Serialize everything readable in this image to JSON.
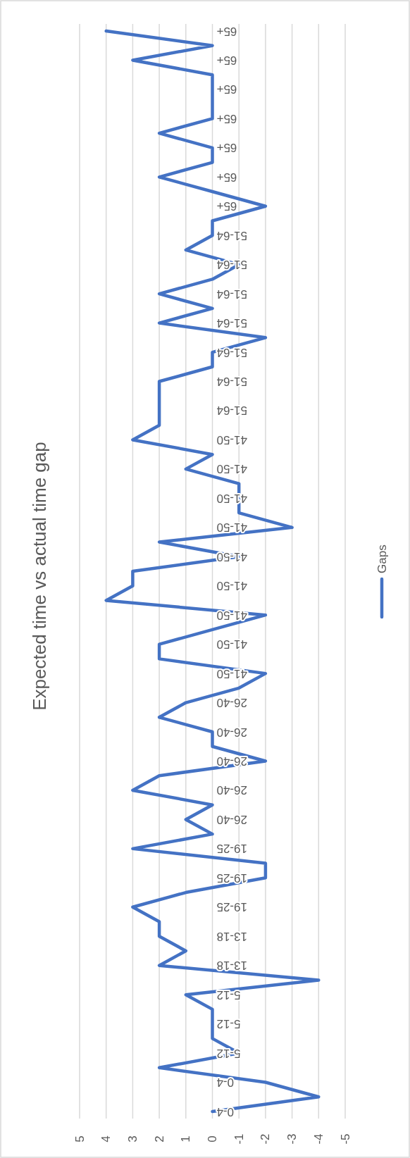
{
  "chart_data": {
    "type": "line",
    "title": "Expected time vs actual time gap",
    "orientation": "horizontal",
    "categories": [
      "65+",
      null,
      "65+",
      null,
      "65+",
      null,
      "65+",
      null,
      "65+",
      null,
      "65+",
      null,
      "65+",
      null,
      "51-64",
      null,
      "51-64",
      null,
      "51-64",
      null,
      "51-64",
      null,
      "51-64",
      null,
      "51-64",
      null,
      "51-64",
      null,
      "41-50",
      null,
      "41-50",
      null,
      "41-50",
      null,
      "41-50",
      null,
      "41-50",
      null,
      "41-50",
      null,
      "41-50",
      null,
      "41-50",
      null,
      "41-50",
      null,
      "26-40",
      null,
      "26-40",
      null,
      "26-40",
      null,
      "26-40",
      null,
      "26-40",
      null,
      "19-25",
      null,
      "19-25",
      null,
      "19-25",
      null,
      "13-18",
      null,
      "13-18",
      null,
      "5-12",
      null,
      "5-12",
      null,
      "5-12",
      null,
      "0-4",
      null,
      "0-4"
    ],
    "series": [
      {
        "name": "Gaps",
        "color": "#4472c4",
        "values": [
          4,
          0,
          3,
          0,
          0,
          0,
          0,
          2,
          0,
          0,
          2,
          0,
          -2,
          0,
          0,
          1,
          -1,
          0,
          2,
          0,
          2,
          -2,
          0,
          0,
          2,
          2,
          2,
          2,
          3,
          0,
          1,
          -1,
          -1,
          -1,
          -3,
          2,
          -1,
          3,
          3,
          4,
          -2,
          0,
          2,
          2,
          -2,
          -1,
          1,
          2,
          0,
          0,
          -2,
          2,
          3,
          0,
          1,
          0,
          3,
          -2,
          -2,
          1,
          3,
          2,
          2,
          1,
          2,
          -4,
          1,
          0,
          0,
          0,
          -1,
          2,
          -2,
          -4,
          0
        ]
      }
    ],
    "xlim": [
      5,
      -5
    ],
    "xticks": [
      5,
      4,
      3,
      2,
      1,
      0,
      -1,
      -2,
      -3,
      -4,
      -5
    ],
    "grid": "x",
    "legend": "right",
    "marker": "none",
    "line_style": "solid"
  }
}
